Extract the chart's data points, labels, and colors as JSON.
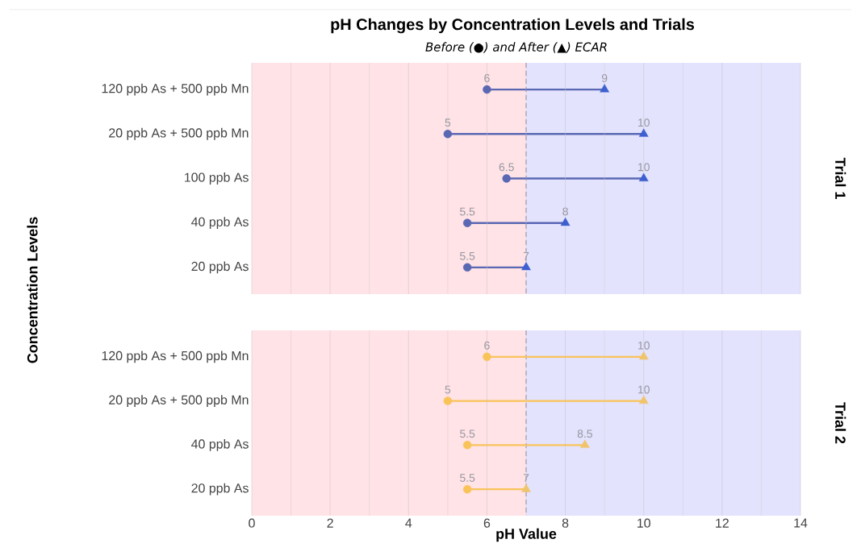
{
  "chart_data": [
    {
      "type": "scatter",
      "orientation": "horizontal",
      "title": "pH Changes by Concentration Levels and Trials",
      "subtitle": "Before (●) and After (▲) ECAR",
      "ylabel": "Concentration Levels",
      "annotations": [
        "Trial 1"
      ],
      "categories": [
        "120 ppb As + 500 ppb Mn",
        "20 ppb As + 500 ppb Mn",
        "100 ppb As",
        "40 ppb As",
        "20 ppb As"
      ],
      "series": [
        {
          "color": "#5a68b4",
          "marker": "circle",
          "values": [
            6,
            5,
            6.5,
            5.5,
            5.5
          ]
        },
        {
          "color": "#3d5fcf",
          "marker": "triangle",
          "values": [
            9,
            10,
            10,
            8,
            7
          ]
        }
      ],
      "xlim": [
        0,
        14
      ],
      "xticks": [
        0,
        2,
        4,
        6,
        8,
        10,
        12,
        14
      ],
      "grid": "x",
      "bands": [
        {
          "axis": "x",
          "from": 0,
          "to": 7,
          "color": "#ffe3e6"
        },
        {
          "axis": "x",
          "from": 7,
          "to": 14,
          "color": "#e3e3fd"
        }
      ],
      "ref_lines": [
        {
          "axis": "x",
          "value": 7,
          "color": "#a9a0b4",
          "line_style": "dashed"
        }
      ],
      "data_labels": true,
      "tick_labels": "y"
    },
    {
      "type": "scatter",
      "orientation": "horizontal",
      "xlabel": "pH Value",
      "annotations": [
        "Trial 2"
      ],
      "categories": [
        "120 ppb As + 500 ppb Mn",
        "20 ppb As + 500 ppb Mn",
        "40 ppb As",
        "20 ppb As"
      ],
      "series": [
        {
          "color": "#f9c35a",
          "marker": "circle",
          "values": [
            6,
            5,
            5.5,
            5.5
          ]
        },
        {
          "color": "#f0c46a",
          "marker": "triangle",
          "values": [
            10,
            10,
            8.5,
            7
          ]
        }
      ],
      "xlim": [
        0,
        14
      ],
      "xticks": [
        0,
        2,
        4,
        6,
        8,
        10,
        12,
        14
      ],
      "grid": "x",
      "bands": [
        {
          "axis": "x",
          "from": 0,
          "to": 7,
          "color": "#ffe3e6"
        },
        {
          "axis": "x",
          "from": 7,
          "to": 14,
          "color": "#e3e3fd"
        }
      ],
      "ref_lines": [
        {
          "axis": "x",
          "value": 7,
          "color": "#a9a0b4",
          "line_style": "dashed"
        }
      ],
      "data_labels": true
    }
  ]
}
